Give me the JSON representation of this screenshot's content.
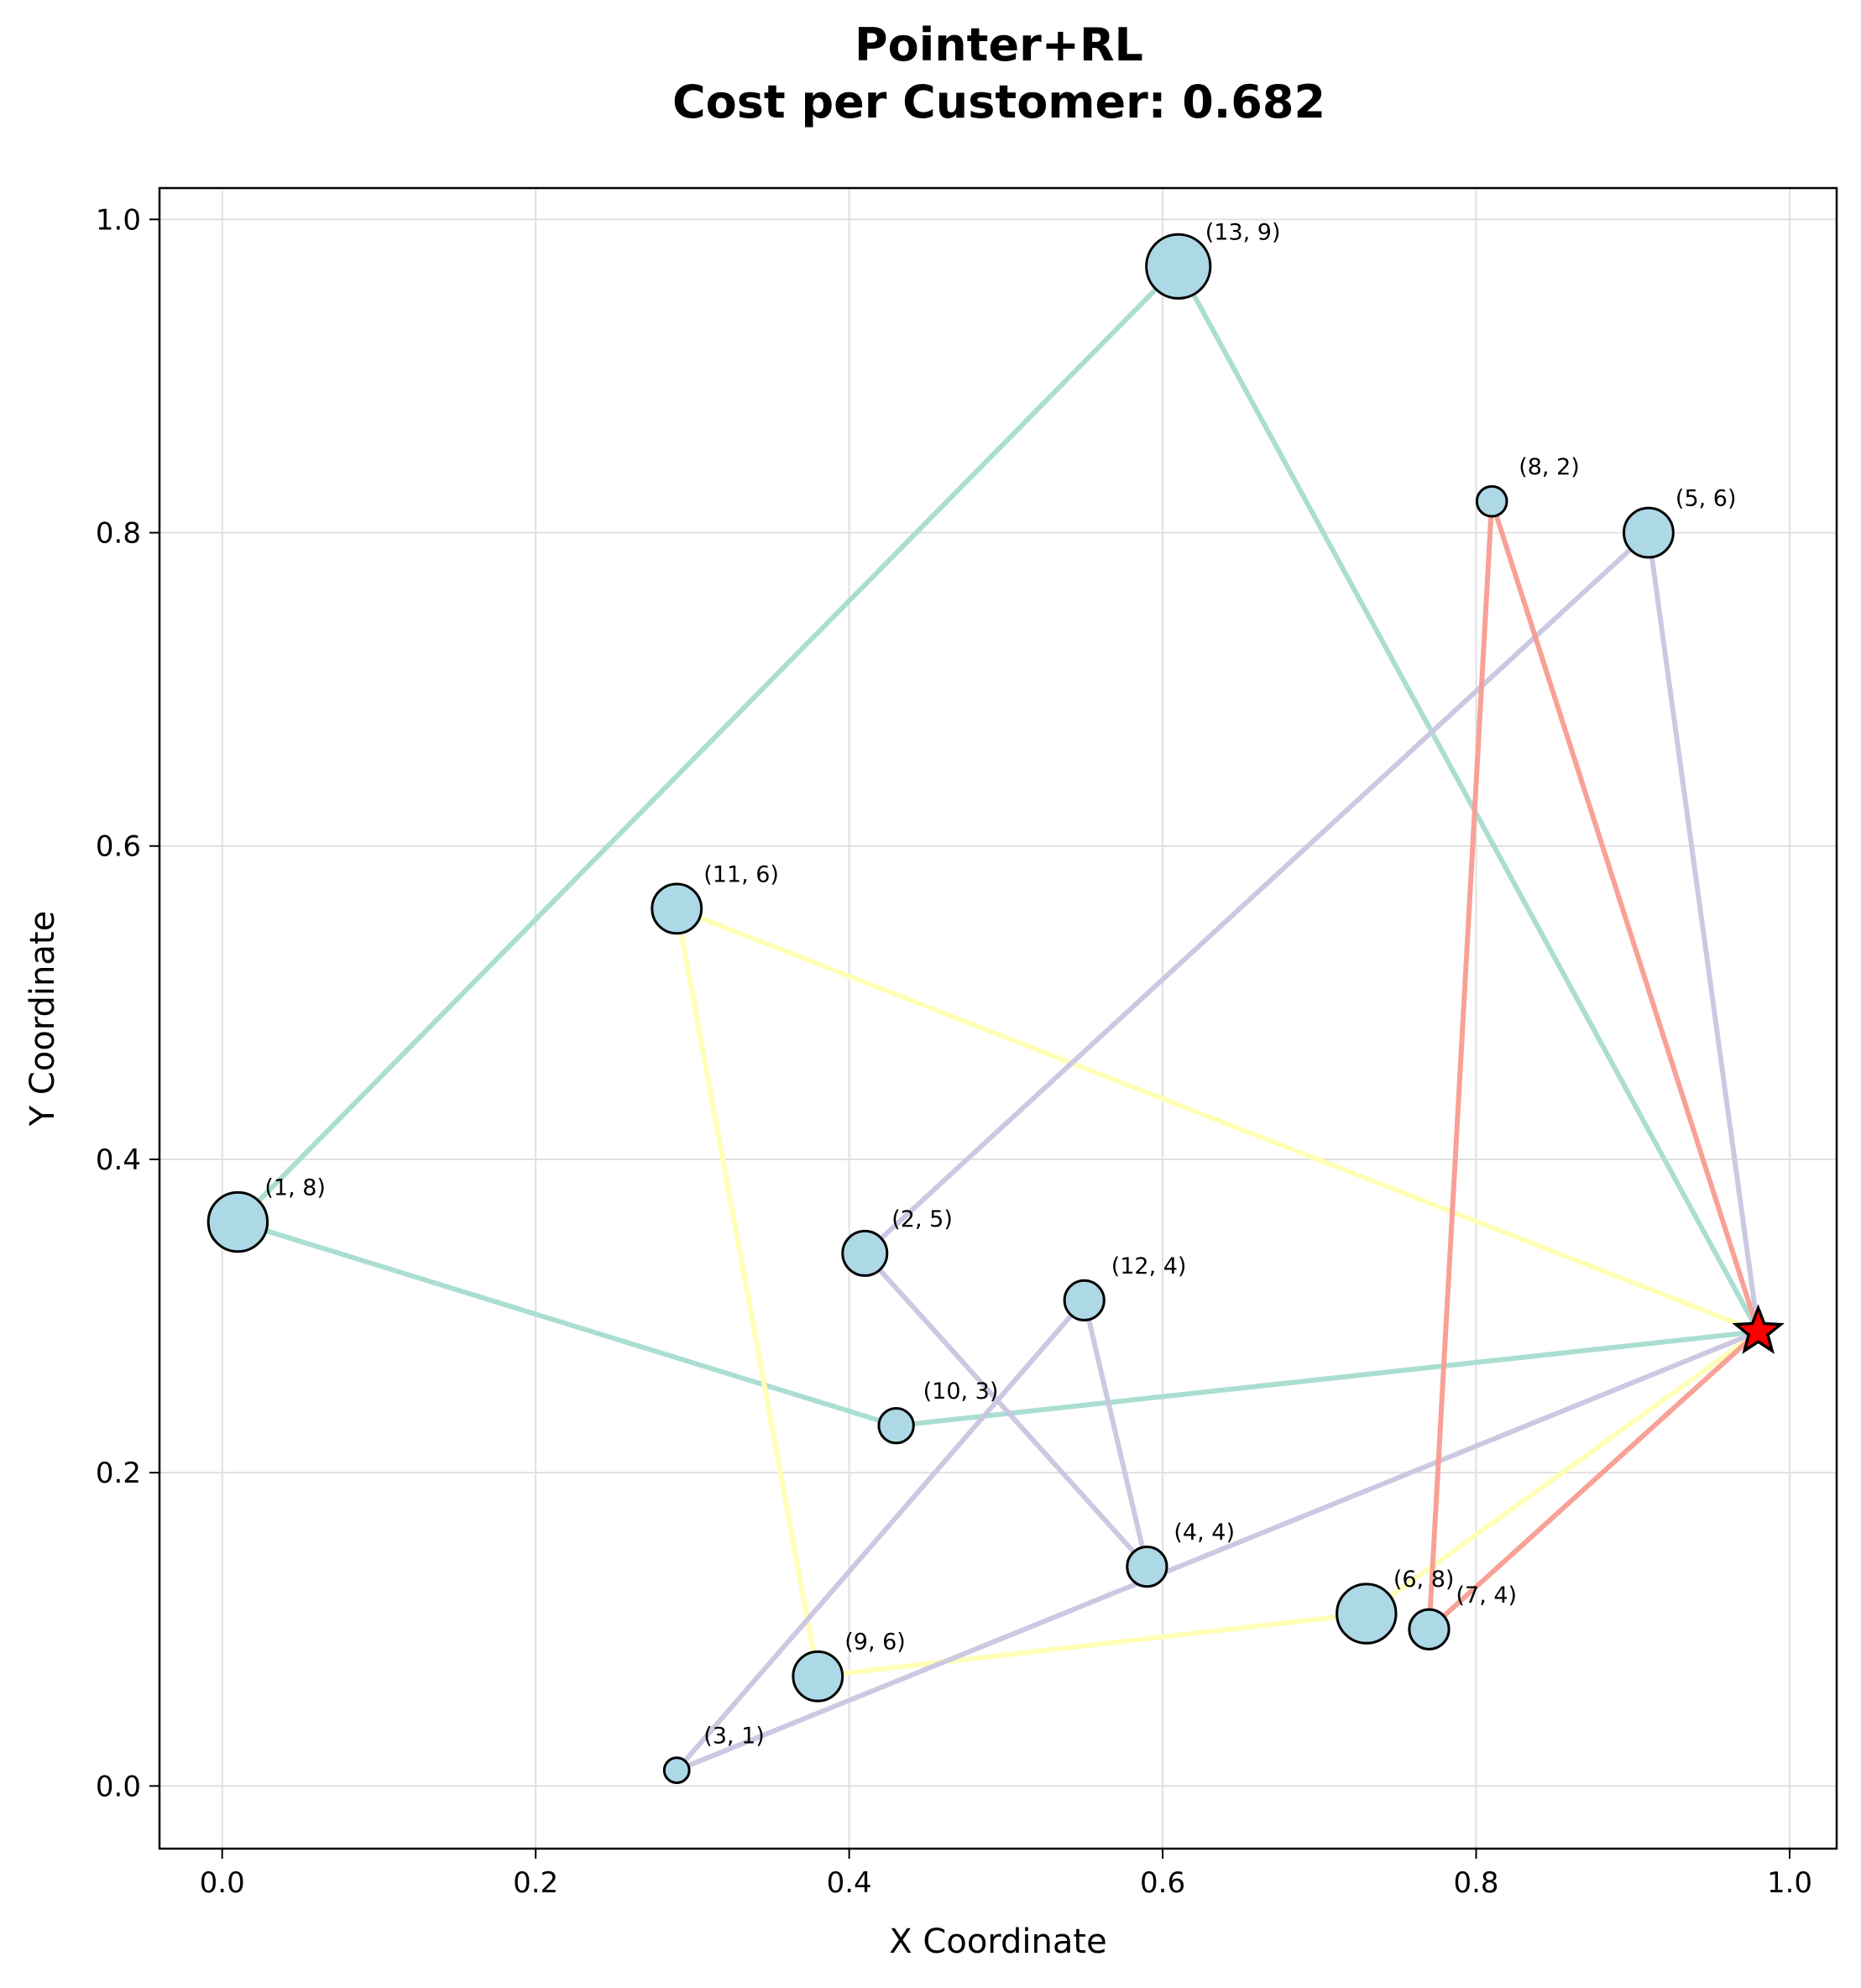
{
  "chart_data": {
    "type": "scatter",
    "title": "Pointer+RL",
    "subtitle": "Cost per Customer: 0.682",
    "xlabel": "X Coordinate",
    "ylabel": "Y Coordinate",
    "xlim": [
      -0.04,
      1.03
    ],
    "ylim": [
      -0.04,
      1.02
    ],
    "xticks": [
      "0.0",
      "0.2",
      "0.4",
      "0.6",
      "0.8",
      "1.0"
    ],
    "xtick_values": [
      0.0,
      0.2,
      0.4,
      0.6,
      0.8,
      1.0
    ],
    "yticks": [
      "0.0",
      "0.2",
      "0.4",
      "0.6",
      "0.8",
      "1.0"
    ],
    "ytick_values": [
      0.0,
      0.2,
      0.4,
      0.6,
      0.8,
      1.0
    ],
    "grid": true,
    "depot": {
      "x": 0.98,
      "y": 0.29,
      "color": "#ff0000",
      "marker": "star"
    },
    "node_color": "#add8e6",
    "customers": [
      {
        "id": 1,
        "demand": 8,
        "x": 0.01,
        "y": 0.36,
        "label": "(1, 8)"
      },
      {
        "id": 2,
        "demand": 5,
        "x": 0.41,
        "y": 0.34,
        "label": "(2, 5)"
      },
      {
        "id": 3,
        "demand": 1,
        "x": 0.29,
        "y": 0.01,
        "label": "(3, 1)"
      },
      {
        "id": 4,
        "demand": 4,
        "x": 0.59,
        "y": 0.14,
        "label": "(4, 4)"
      },
      {
        "id": 5,
        "demand": 6,
        "x": 0.91,
        "y": 0.8,
        "label": "(5, 6)"
      },
      {
        "id": 6,
        "demand": 8,
        "x": 0.73,
        "y": 0.11,
        "label": "(6, 8)"
      },
      {
        "id": 7,
        "demand": 4,
        "x": 0.77,
        "y": 0.1,
        "label": "(7, 4)"
      },
      {
        "id": 8,
        "demand": 2,
        "x": 0.81,
        "y": 0.82,
        "label": "(8, 2)"
      },
      {
        "id": 9,
        "demand": 6,
        "x": 0.38,
        "y": 0.07,
        "label": "(9, 6)"
      },
      {
        "id": 10,
        "demand": 3,
        "x": 0.43,
        "y": 0.23,
        "label": "(10, 3)"
      },
      {
        "id": 11,
        "demand": 6,
        "x": 0.29,
        "y": 0.56,
        "label": "(11, 6)"
      },
      {
        "id": 12,
        "demand": 4,
        "x": 0.55,
        "y": 0.31,
        "label": "(12, 4)"
      },
      {
        "id": 13,
        "demand": 9,
        "x": 0.61,
        "y": 0.97,
        "label": "(13, 9)"
      }
    ],
    "routes": [
      {
        "color": "#a6dcd0",
        "stops": [
          13,
          1,
          10
        ]
      },
      {
        "color": "#ffffb3",
        "stops": [
          11,
          9,
          6
        ]
      },
      {
        "color": "#c8c6e0",
        "stops": [
          5,
          2,
          4,
          12,
          3
        ]
      },
      {
        "color": "#f89c90",
        "stops": [
          8,
          7
        ]
      }
    ]
  }
}
